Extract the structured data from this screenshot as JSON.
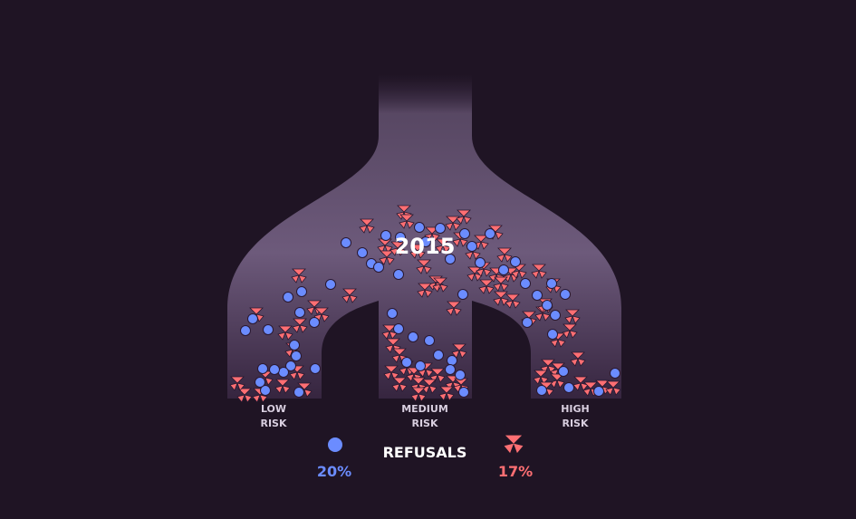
{
  "chart_data": {
    "type": "scatter",
    "title": "2015",
    "categories": [
      "LOW\nRISK",
      "MEDIUM\nRISK",
      "HIGH\nRISK"
    ],
    "legend": {
      "title": "REFUSALS",
      "entries": [
        {
          "symbol": "circle",
          "label": "20%",
          "color": "#6b8cff"
        },
        {
          "symbol": "trefoil",
          "label": "17%",
          "color": "#ff6f73"
        }
      ]
    },
    "colors": {
      "background": "#1f1424",
      "blue": "#6b8cff",
      "red": "#ff6f73",
      "outline": "#2a1830"
    },
    "series": [
      {
        "name": "blue",
        "points": [
          [
            271,
            365
          ],
          [
            279,
            352
          ],
          [
            296,
            364
          ],
          [
            318,
            328
          ],
          [
            333,
            322
          ],
          [
            331,
            345
          ],
          [
            347,
            356
          ],
          [
            365,
            314
          ],
          [
            382,
            268
          ],
          [
            400,
            279
          ],
          [
            410,
            291
          ],
          [
            418,
            295
          ],
          [
            426,
            260
          ],
          [
            440,
            303
          ],
          [
            442,
            262
          ],
          [
            463,
            251
          ],
          [
            470,
            267
          ],
          [
            486,
            252
          ],
          [
            497,
            286
          ],
          [
            513,
            258
          ],
          [
            521,
            272
          ],
          [
            541,
            258
          ],
          [
            530,
            290
          ],
          [
            556,
            298
          ],
          [
            569,
            289
          ],
          [
            580,
            313
          ],
          [
            593,
            326
          ],
          [
            604,
            337
          ],
          [
            624,
            325
          ],
          [
            609,
            313
          ],
          [
            613,
            348
          ],
          [
            582,
            356
          ],
          [
            610,
            369
          ],
          [
            511,
            325
          ],
          [
            433,
            346
          ],
          [
            440,
            363
          ],
          [
            456,
            372
          ],
          [
            474,
            376
          ],
          [
            484,
            392
          ],
          [
            499,
            398
          ],
          [
            497,
            408
          ],
          [
            508,
            414
          ],
          [
            512,
            433
          ],
          [
            464,
            404
          ],
          [
            449,
            400
          ],
          [
            325,
            381
          ],
          [
            327,
            393
          ],
          [
            321,
            404
          ],
          [
            313,
            411
          ],
          [
            303,
            408
          ],
          [
            290,
            407
          ],
          [
            348,
            407
          ],
          [
            330,
            433
          ],
          [
            293,
            431
          ],
          [
            287,
            422
          ],
          [
            679,
            412
          ],
          [
            661,
            432
          ],
          [
            628,
            428
          ],
          [
            598,
            431
          ],
          [
            622,
            410
          ]
        ]
      },
      {
        "name": "red",
        "points": [
          [
            283,
            348
          ],
          [
            330,
            305
          ],
          [
            315,
            368
          ],
          [
            331,
            360
          ],
          [
            347,
            340
          ],
          [
            355,
            348
          ],
          [
            386,
            327
          ],
          [
            405,
            250
          ],
          [
            425,
            272
          ],
          [
            427,
            285
          ],
          [
            439,
            275
          ],
          [
            446,
            235
          ],
          [
            449,
            245
          ],
          [
            468,
            295
          ],
          [
            461,
            278
          ],
          [
            477,
            259
          ],
          [
            481,
            313
          ],
          [
            469,
            321
          ],
          [
            486,
            315
          ],
          [
            489,
            272
          ],
          [
            500,
            247
          ],
          [
            512,
            240
          ],
          [
            508,
            265
          ],
          [
            522,
            279
          ],
          [
            531,
            268
          ],
          [
            547,
            257
          ],
          [
            524,
            303
          ],
          [
            534,
            298
          ],
          [
            548,
            304
          ],
          [
            557,
            282
          ],
          [
            564,
            304
          ],
          [
            573,
            300
          ],
          [
            595,
            300
          ],
          [
            611,
            316
          ],
          [
            584,
            352
          ],
          [
            599,
            347
          ],
          [
            602,
            338
          ],
          [
            632,
            350
          ],
          [
            629,
            366
          ],
          [
            616,
            376
          ],
          [
            553,
            330
          ],
          [
            566,
            333
          ],
          [
            537,
            317
          ],
          [
            553,
            314
          ],
          [
            501,
            341
          ],
          [
            507,
            388
          ],
          [
            430,
            367
          ],
          [
            434,
            382
          ],
          [
            441,
            393
          ],
          [
            432,
            412
          ],
          [
            449,
            407
          ],
          [
            457,
            414
          ],
          [
            470,
            409
          ],
          [
            483,
            415
          ],
          [
            462,
            425
          ],
          [
            474,
            427
          ],
          [
            500,
            423
          ],
          [
            493,
            435
          ],
          [
            509,
            426
          ],
          [
            441,
            425
          ],
          [
            462,
            436
          ],
          [
            605,
            405
          ],
          [
            616,
            409
          ],
          [
            615,
            421
          ],
          [
            597,
            417
          ],
          [
            603,
            430
          ],
          [
            638,
            397
          ],
          [
            641,
            424
          ],
          [
            652,
            430
          ],
          [
            665,
            428
          ],
          [
            677,
            429
          ],
          [
            293,
            418
          ],
          [
            287,
            437
          ],
          [
            270,
            437
          ],
          [
            262,
            424
          ],
          [
            312,
            427
          ],
          [
            328,
            412
          ],
          [
            323,
            387
          ],
          [
            336,
            431
          ]
        ]
      }
    ]
  }
}
